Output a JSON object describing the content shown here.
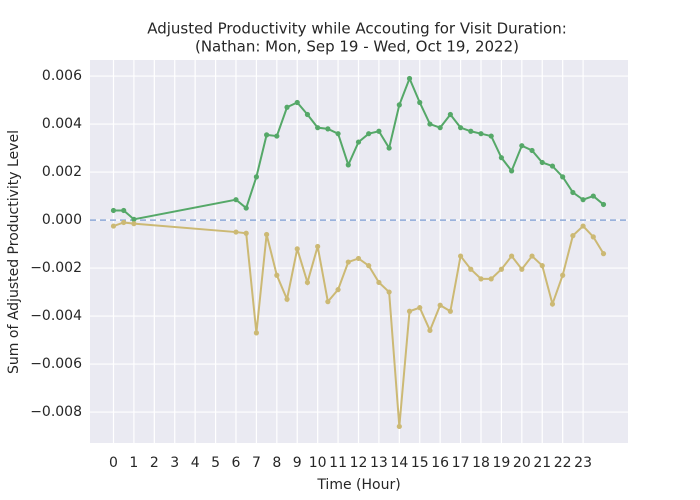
{
  "chart_data": {
    "type": "line",
    "title": [
      "Adjusted Productivity while Accouting for Visit Duration:",
      "(Nathan: Mon, Sep 19 - Wed, Oct 19, 2022)"
    ],
    "xlabel": "Time (Hour)",
    "ylabel": "Sum of Adjusted Productivity Level",
    "x": [
      0,
      0.5,
      1,
      6,
      6.5,
      7,
      7.5,
      8,
      8.5,
      9,
      9.5,
      10,
      10.5,
      11,
      11.5,
      12,
      12.5,
      13,
      13.5,
      14,
      14.5,
      15,
      15.5,
      16,
      16.5,
      17,
      17.5,
      18,
      18.5,
      19,
      19.5,
      20,
      20.5,
      21,
      21.5,
      22,
      22.5,
      23,
      23.5,
      24
    ],
    "series": [
      {
        "color": "#55a868",
        "values": [
          0.0004,
          0.0004,
          3e-05,
          0.00085,
          0.0005,
          0.0018,
          0.00355,
          0.0035,
          0.0047,
          0.0049,
          0.0044,
          0.00385,
          0.0038,
          0.0036,
          0.0023,
          0.00325,
          0.0036,
          0.0037,
          0.003,
          0.0048,
          0.0059,
          0.0049,
          0.004,
          0.00385,
          0.0044,
          0.00385,
          0.0037,
          0.0036,
          0.0035,
          0.0026,
          0.00205,
          0.0031,
          0.0029,
          0.0024,
          0.00225,
          0.0018,
          0.00115,
          0.00085,
          0.001,
          0.00065
        ]
      },
      {
        "color": "#ccb974",
        "values": [
          -0.00025,
          -0.0001,
          -0.00015,
          -0.0005,
          -0.00055,
          -0.0047,
          -0.0006,
          -0.0023,
          -0.0033,
          -0.0012,
          -0.0026,
          -0.0011,
          -0.0034,
          -0.0029,
          -0.00175,
          -0.0016,
          -0.0019,
          -0.0026,
          -0.003,
          -0.0086,
          -0.0038,
          -0.00365,
          -0.0046,
          -0.00355,
          -0.0038,
          -0.0015,
          -0.00205,
          -0.00245,
          -0.00245,
          -0.00205,
          -0.0015,
          -0.00205,
          -0.0015,
          -0.0019,
          -0.0035,
          -0.0023,
          -0.00065,
          -0.00025,
          -0.0007,
          -0.0014
        ]
      }
    ],
    "reference_line": {
      "value": 0,
      "color": "#8eaad8",
      "style": "dashed"
    },
    "xlim": [
      -1.15,
      25.2
    ],
    "ylim": [
      -0.00929,
      0.00667
    ],
    "xticks": [
      0,
      1,
      2,
      3,
      4,
      5,
      6,
      7,
      8,
      9,
      10,
      11,
      12,
      13,
      14,
      15,
      16,
      17,
      18,
      19,
      20,
      21,
      22,
      23
    ],
    "yticks": [
      {
        "value": -0.008,
        "label": "−0.008"
      },
      {
        "value": -0.006,
        "label": "−0.006"
      },
      {
        "value": -0.004,
        "label": "−0.004"
      },
      {
        "value": -0.002,
        "label": "−0.002"
      },
      {
        "value": 0,
        "label": "0.000"
      },
      0.002,
      0.004,
      0.006
    ],
    "grid": true
  }
}
